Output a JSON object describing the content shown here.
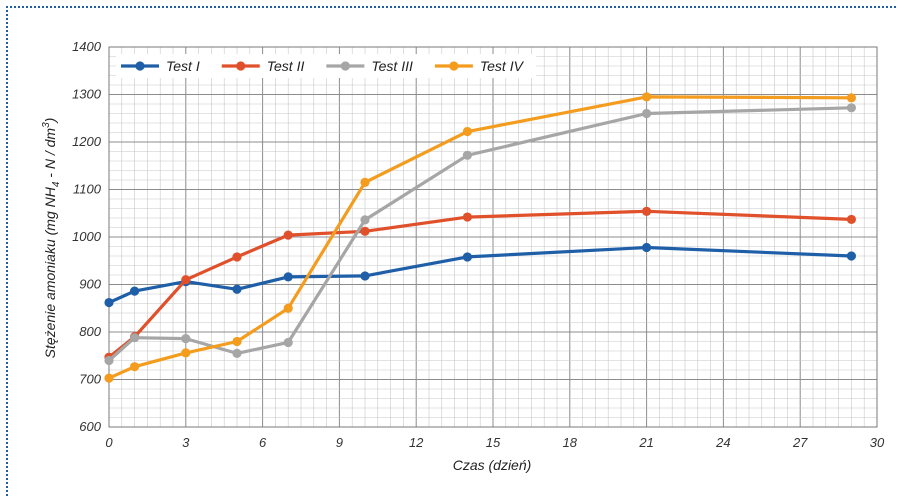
{
  "chart_data": {
    "type": "line",
    "xlabel": "Czas (dzień)",
    "ylabel_prefix": "Stężenie amoniaku (mg NH",
    "ylabel_sub": "4",
    "ylabel_mid": " - N / dm",
    "ylabel_sup": "3",
    "ylabel_suffix": ")",
    "xlim": [
      0,
      30
    ],
    "ylim": [
      600,
      1400
    ],
    "xticks": [
      0,
      3,
      6,
      9,
      12,
      15,
      18,
      21,
      24,
      27,
      30
    ],
    "yticks": [
      600,
      700,
      800,
      900,
      1000,
      1100,
      1200,
      1300,
      1400
    ],
    "grid": true,
    "legend_position": "top-left",
    "series": [
      {
        "name": "Test I",
        "color": "#1f5fa8",
        "x": [
          0,
          1,
          3,
          5,
          7,
          10,
          14,
          21,
          29
        ],
        "y": [
          862,
          886,
          906,
          890,
          916,
          918,
          958,
          978,
          960
        ]
      },
      {
        "name": "Test II",
        "color": "#e0502b",
        "x": [
          0,
          1,
          3,
          5,
          7,
          10,
          14,
          21,
          29
        ],
        "y": [
          747,
          790,
          910,
          958,
          1004,
          1012,
          1042,
          1054,
          1037
        ]
      },
      {
        "name": "Test III",
        "color": "#a6a6a6",
        "x": [
          0,
          1,
          3,
          5,
          7,
          10,
          14,
          21,
          29
        ],
        "y": [
          740,
          788,
          786,
          755,
          778,
          1036,
          1172,
          1260,
          1272
        ]
      },
      {
        "name": "Test IV",
        "color": "#f39c1e",
        "x": [
          0,
          1,
          3,
          5,
          7,
          10,
          14,
          21,
          29
        ],
        "y": [
          703,
          727,
          756,
          780,
          850,
          1115,
          1222,
          1295,
          1293
        ]
      }
    ]
  }
}
